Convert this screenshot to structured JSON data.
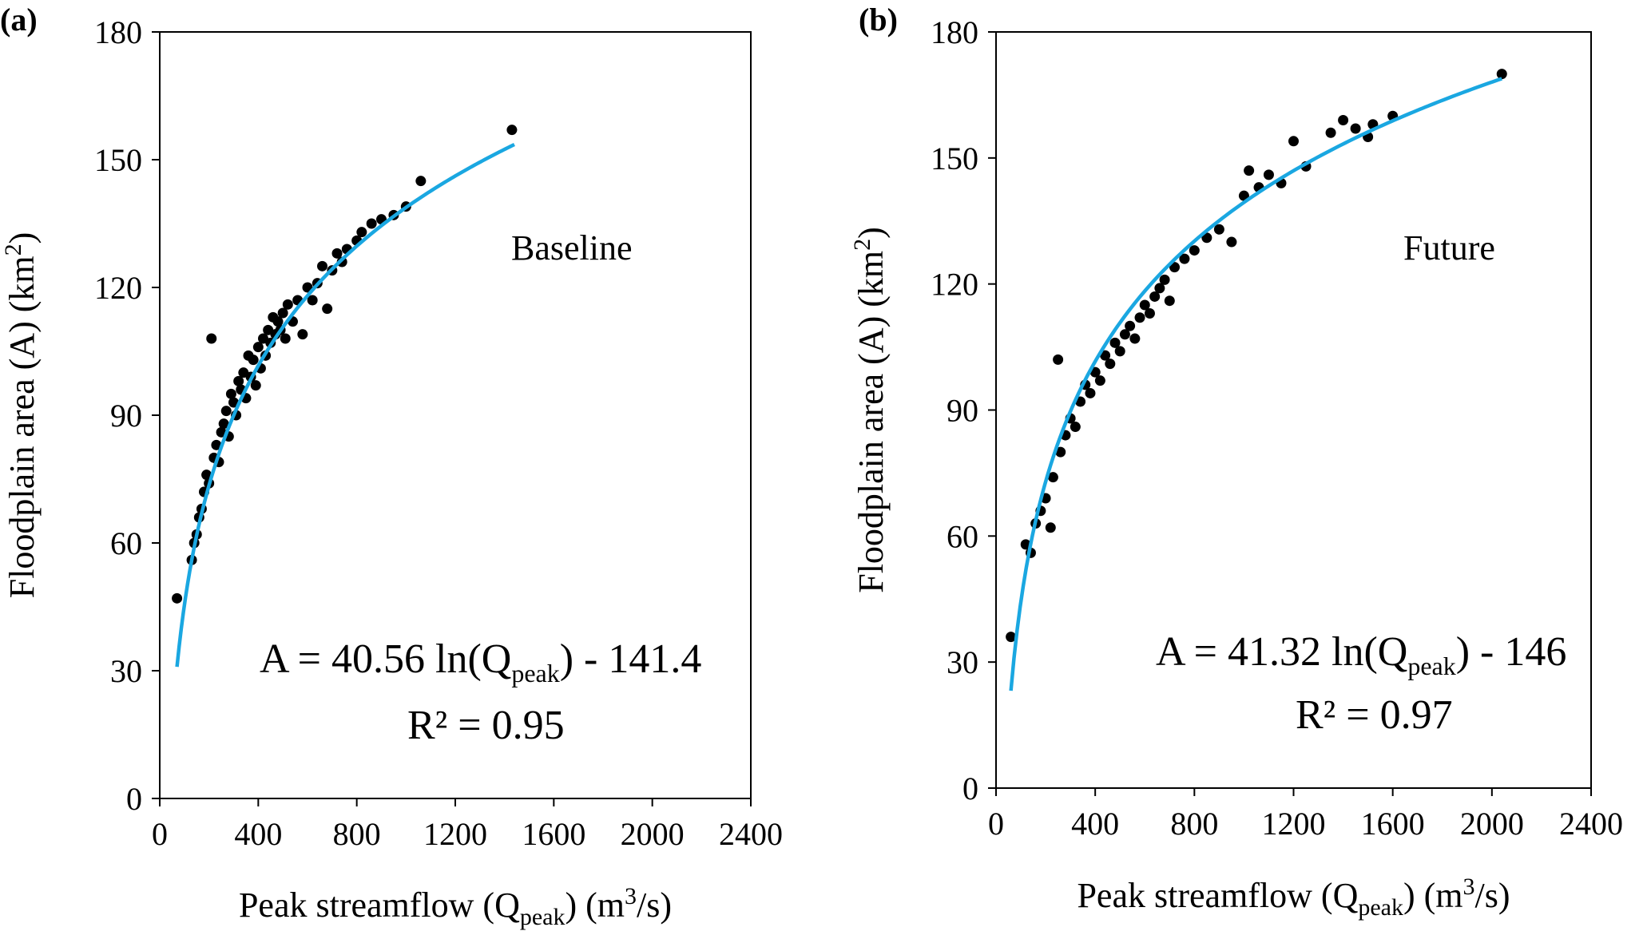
{
  "chart_data": [
    {
      "panel_label": "(a)",
      "type": "scatter",
      "series_label": "Baseline",
      "xlabel": {
        "main": "Peak streamflow (Q",
        "sub": "peak",
        "post": ") (m",
        "sup": "3",
        "end": "/s)"
      },
      "ylabel": {
        "main": "Floodplain area (A) (km",
        "sup": "2",
        "end": ")"
      },
      "xlim": [
        0,
        2400
      ],
      "ylim": [
        0,
        180
      ],
      "xticks": [
        "0",
        "400",
        "800",
        "1200",
        "1600",
        "2000",
        "2400"
      ],
      "yticks": [
        "0",
        "30",
        "60",
        "90",
        "120",
        "150",
        "180"
      ],
      "equation": {
        "pre": "A = 40.56 ln(Q",
        "sub": "peak",
        "post": ") - 141.4"
      },
      "r2": "R² = 0.95",
      "fit": {
        "a": 40.56,
        "b": -141.4,
        "x_range": [
          70,
          1440
        ]
      },
      "fit_color": "#1aa7e1",
      "points": [
        [
          70,
          47
        ],
        [
          130,
          56
        ],
        [
          140,
          60
        ],
        [
          150,
          62
        ],
        [
          160,
          66
        ],
        [
          170,
          68
        ],
        [
          180,
          72
        ],
        [
          190,
          76
        ],
        [
          200,
          74
        ],
        [
          210,
          108
        ],
        [
          220,
          80
        ],
        [
          230,
          83
        ],
        [
          240,
          79
        ],
        [
          250,
          86
        ],
        [
          260,
          88
        ],
        [
          270,
          91
        ],
        [
          280,
          85
        ],
        [
          290,
          95
        ],
        [
          300,
          93
        ],
        [
          310,
          90
        ],
        [
          320,
          98
        ],
        [
          330,
          96
        ],
        [
          340,
          100
        ],
        [
          350,
          94
        ],
        [
          360,
          104
        ],
        [
          370,
          99
        ],
        [
          380,
          103
        ],
        [
          390,
          97
        ],
        [
          400,
          106
        ],
        [
          410,
          101
        ],
        [
          420,
          108
        ],
        [
          430,
          104
        ],
        [
          440,
          110
        ],
        [
          450,
          107
        ],
        [
          460,
          113
        ],
        [
          470,
          109
        ],
        [
          480,
          112
        ],
        [
          490,
          110
        ],
        [
          500,
          114
        ],
        [
          510,
          108
        ],
        [
          520,
          116
        ],
        [
          540,
          112
        ],
        [
          560,
          117
        ],
        [
          580,
          109
        ],
        [
          600,
          120
        ],
        [
          620,
          117
        ],
        [
          640,
          121
        ],
        [
          660,
          125
        ],
        [
          680,
          115
        ],
        [
          700,
          124
        ],
        [
          720,
          128
        ],
        [
          740,
          126
        ],
        [
          760,
          129
        ],
        [
          800,
          131
        ],
        [
          820,
          133
        ],
        [
          860,
          135
        ],
        [
          900,
          136
        ],
        [
          950,
          137
        ],
        [
          1000,
          139
        ],
        [
          1060,
          145
        ],
        [
          1430,
          157
        ]
      ]
    },
    {
      "panel_label": "(b)",
      "type": "scatter",
      "series_label": "Future",
      "xlabel": {
        "main": "Peak streamflow (Q",
        "sub": "peak",
        "post": ") (m",
        "sup": "3",
        "end": "/s)"
      },
      "ylabel": {
        "main": "Floodplain area (A) (km",
        "sup": "2",
        "end": ")"
      },
      "xlim": [
        0,
        2400
      ],
      "ylim": [
        0,
        180
      ],
      "xticks": [
        "0",
        "400",
        "800",
        "1200",
        "1600",
        "2000",
        "2400"
      ],
      "yticks": [
        "0",
        "30",
        "60",
        "90",
        "120",
        "150",
        "180"
      ],
      "equation": {
        "pre": "A = 41.32 ln(Q",
        "sub": "peak",
        "post": ") - 146"
      },
      "r2": "R² = 0.97",
      "fit": {
        "a": 41.32,
        "b": -146,
        "x_range": [
          60,
          2040
        ]
      },
      "fit_color": "#1aa7e1",
      "points": [
        [
          60,
          36
        ],
        [
          120,
          58
        ],
        [
          140,
          56
        ],
        [
          160,
          63
        ],
        [
          180,
          66
        ],
        [
          200,
          69
        ],
        [
          220,
          62
        ],
        [
          230,
          74
        ],
        [
          250,
          102
        ],
        [
          260,
          80
        ],
        [
          280,
          84
        ],
        [
          300,
          88
        ],
        [
          320,
          86
        ],
        [
          340,
          92
        ],
        [
          360,
          96
        ],
        [
          380,
          94
        ],
        [
          400,
          99
        ],
        [
          420,
          97
        ],
        [
          440,
          103
        ],
        [
          460,
          101
        ],
        [
          480,
          106
        ],
        [
          500,
          104
        ],
        [
          520,
          108
        ],
        [
          540,
          110
        ],
        [
          560,
          107
        ],
        [
          580,
          112
        ],
        [
          600,
          115
        ],
        [
          620,
          113
        ],
        [
          640,
          117
        ],
        [
          660,
          119
        ],
        [
          680,
          121
        ],
        [
          700,
          116
        ],
        [
          720,
          124
        ],
        [
          760,
          126
        ],
        [
          800,
          128
        ],
        [
          850,
          131
        ],
        [
          900,
          133
        ],
        [
          950,
          130
        ],
        [
          1000,
          141
        ],
        [
          1020,
          147
        ],
        [
          1060,
          143
        ],
        [
          1100,
          146
        ],
        [
          1150,
          144
        ],
        [
          1200,
          154
        ],
        [
          1250,
          148
        ],
        [
          1350,
          156
        ],
        [
          1400,
          159
        ],
        [
          1450,
          157
        ],
        [
          1500,
          155
        ],
        [
          1520,
          158
        ],
        [
          1600,
          160
        ],
        [
          2040,
          170
        ]
      ]
    }
  ]
}
